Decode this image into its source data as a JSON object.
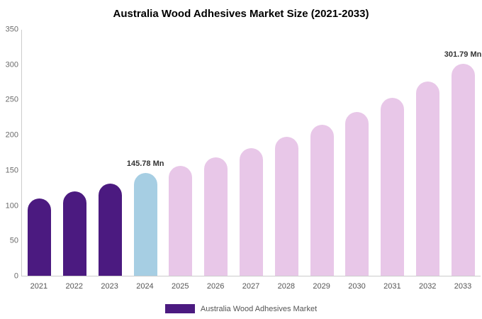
{
  "legend": {
    "label": "Australia Wood Adhesives Market",
    "swatch_color": "#4b1a80"
  },
  "chart_data": {
    "type": "bar",
    "title": "Australia Wood Adhesives Market Size (2021-2033)",
    "categories": [
      "2021",
      "2022",
      "2023",
      "2024",
      "2025",
      "2026",
      "2027",
      "2028",
      "2029",
      "2030",
      "2031",
      "2032",
      "2033"
    ],
    "values": [
      110,
      120,
      131,
      145.78,
      156,
      168,
      182,
      198,
      215,
      233,
      253,
      276,
      301.79
    ],
    "unit": "Mn",
    "xlabel": "",
    "ylabel": "",
    "ylim": [
      0,
      350
    ],
    "yticks": [
      0,
      50,
      100,
      150,
      200,
      250,
      300,
      350
    ],
    "grid": false,
    "legend_position": "bottom",
    "colors": {
      "historical": "#4b1a80",
      "current": "#a6cee3",
      "forecast": "#e8c7e8"
    },
    "bar_roles": [
      "historical",
      "historical",
      "historical",
      "current",
      "forecast",
      "forecast",
      "forecast",
      "forecast",
      "forecast",
      "forecast",
      "forecast",
      "forecast",
      "forecast"
    ],
    "annotations": [
      {
        "index": 3,
        "text": "145.78 Mn"
      },
      {
        "index": 12,
        "text": "301.79 Mn"
      }
    ]
  }
}
